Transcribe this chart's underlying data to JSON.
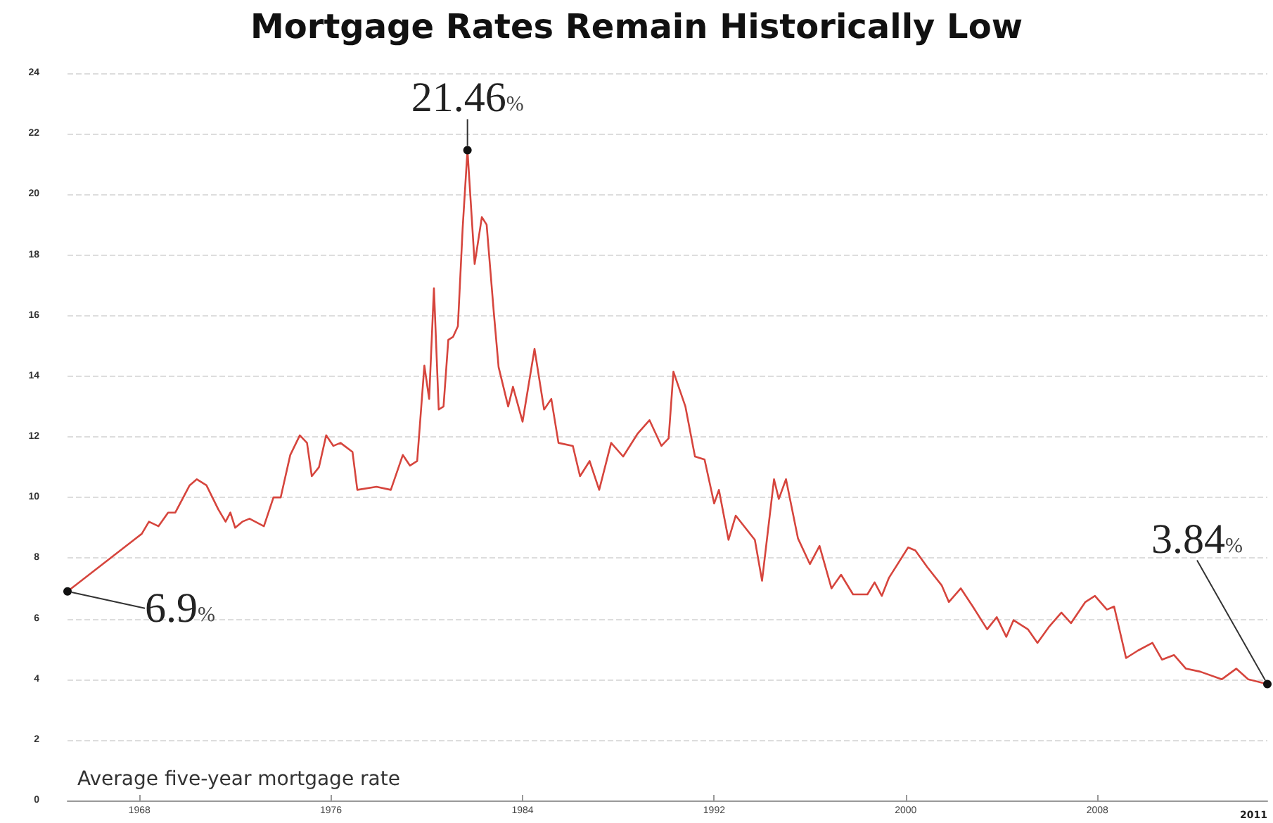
{
  "chart_data": {
    "type": "line",
    "title": "Mortgage Rates Remain Historically Low",
    "x": [
      1965.0,
      1968.1,
      1968.4,
      1968.8,
      1969.2,
      1969.5,
      1970.1,
      1970.4,
      1970.8,
      1971.3,
      1971.6,
      1971.8,
      1972.0,
      1972.3,
      1972.6,
      1973.2,
      1973.6,
      1973.9,
      1974.3,
      1974.7,
      1975.0,
      1975.2,
      1975.5,
      1975.8,
      1976.1,
      1976.4,
      1976.9,
      1977.1,
      1977.9,
      1978.5,
      1979.0,
      1979.3,
      1979.6,
      1979.9,
      1980.1,
      1980.3,
      1980.5,
      1980.7,
      1980.9,
      1981.1,
      1981.3,
      1981.5,
      1981.7,
      1982.0,
      1982.3,
      1982.5,
      1982.8,
      1983.0,
      1983.4,
      1983.6,
      1984.0,
      1984.5,
      1984.9,
      1985.2,
      1985.5,
      1986.1,
      1986.4,
      1986.8,
      1987.2,
      1987.7,
      1988.2,
      1988.8,
      1989.3,
      1989.8,
      1990.1,
      1990.3,
      1990.8,
      1991.2,
      1991.6,
      1992.0,
      1992.2,
      1992.6,
      1992.9,
      1993.7,
      1994.0,
      1994.5,
      1994.7,
      1995.0,
      1995.5,
      1996.0,
      1996.4,
      1996.9,
      1997.3,
      1997.8,
      1998.4,
      1998.7,
      1999.0,
      1999.3,
      2000.1,
      2000.4,
      2000.9,
      2001.5,
      2001.8,
      2002.3,
      2002.8,
      2003.4,
      2003.8,
      2004.2,
      2004.5,
      2005.1,
      2005.5,
      2006.0,
      2006.5,
      2006.9,
      2007.5,
      2007.9,
      2008.4,
      2008.7,
      2009.2,
      2009.7,
      2010.3,
      2010.7,
      2011.2,
      2011.7,
      2012.3,
      2013.2,
      2013.8,
      2014.3,
      2015.1
    ],
    "series": [
      {
        "color": "#d6453d",
        "values": [
          6.9,
          8.8,
          9.2,
          9.05,
          9.5,
          9.5,
          10.4,
          10.6,
          10.4,
          9.6,
          9.2,
          9.5,
          9.0,
          9.2,
          9.3,
          9.05,
          10.0,
          10.0,
          11.4,
          12.05,
          11.8,
          10.7,
          11.0,
          12.05,
          11.7,
          11.8,
          11.5,
          10.25,
          10.35,
          10.25,
          11.4,
          11.05,
          11.2,
          14.35,
          13.25,
          16.9,
          12.9,
          13.0,
          15.2,
          15.3,
          15.65,
          18.9,
          21.46,
          17.7,
          19.25,
          19.0,
          16.1,
          14.3,
          13.0,
          13.65,
          12.5,
          14.9,
          12.9,
          13.25,
          11.8,
          11.7,
          10.7,
          11.2,
          10.25,
          11.8,
          11.35,
          12.1,
          12.55,
          11.7,
          11.95,
          14.15,
          13.0,
          11.35,
          11.25,
          9.8,
          10.25,
          8.6,
          9.4,
          8.6,
          7.25,
          10.6,
          9.95,
          10.6,
          8.65,
          7.8,
          8.4,
          7.0,
          7.45,
          6.8,
          6.8,
          7.2,
          6.75,
          7.35,
          8.35,
          8.25,
          7.7,
          7.1,
          6.55,
          7.0,
          6.4,
          5.65,
          6.05,
          5.4,
          5.95,
          5.65,
          5.2,
          5.75,
          6.2,
          5.85,
          6.55,
          6.75,
          6.3,
          6.4,
          4.7,
          4.95,
          5.2,
          4.65,
          4.8,
          4.35,
          4.25,
          4.0,
          4.35,
          4.0,
          3.84
        ]
      }
    ],
    "xlim": [
      1965.0,
      2015.1
    ],
    "xticks": [
      1968,
      1976,
      1984,
      1992,
      2000,
      2008
    ],
    "ylim": [
      0,
      24
    ],
    "yticks": [
      0,
      2,
      4,
      6,
      8,
      10,
      12,
      14,
      16,
      18,
      20,
      22,
      24
    ],
    "grid": "y",
    "marker": "none",
    "line_style": "solid",
    "annotations": [
      {
        "text": "21.46%",
        "x": 1981.7,
        "y": 21.46
      },
      {
        "text": "6.9%",
        "x": 1965.0,
        "y": 6.9
      },
      {
        "text": "3.84%",
        "x": 2015.1,
        "y": 3.84
      },
      "Average five-year mortgage rate",
      "2011"
    ]
  }
}
